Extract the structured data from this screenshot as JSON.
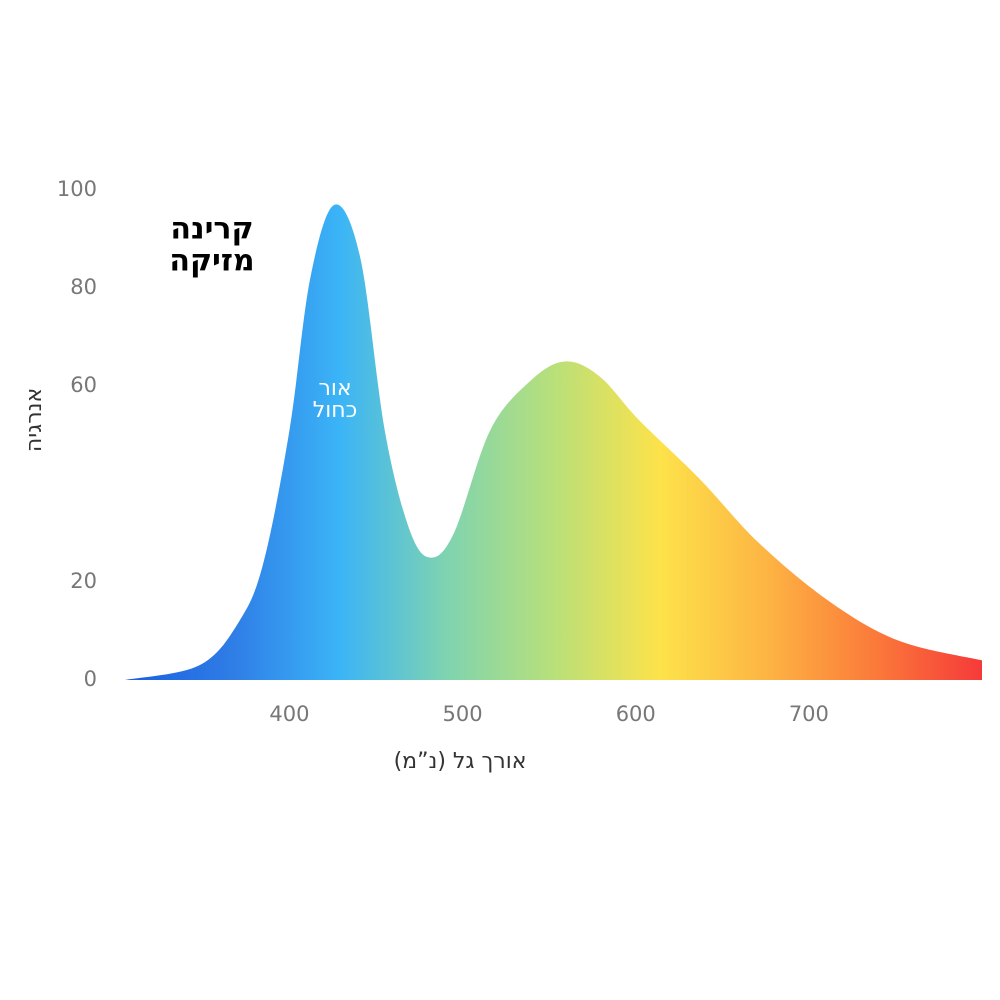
{
  "chart_data": {
    "type": "area",
    "x_label": "אורך גל (נ”מ)",
    "y_label": "אנרגיה",
    "annotations": [
      [
        "קרינה",
        "מזיקה"
      ],
      [
        "אור",
        "כחול"
      ]
    ],
    "x": [
      305,
      348,
      371,
      385,
      400,
      412,
      426,
      441,
      455,
      469,
      481,
      495,
      516,
      539,
      559,
      579,
      602,
      637,
      671,
      712,
      752,
      800
    ],
    "values": [
      0,
      3,
      12,
      24,
      51,
      82,
      97,
      86,
      51,
      31,
      25,
      30,
      51,
      61,
      65,
      62,
      53,
      41,
      28,
      16,
      8,
      4
    ],
    "gradient": [
      "#1a5fe0",
      "#2f7de6",
      "#3bb4f7",
      "#7fd3b0",
      "#b8e07a",
      "#fde24a",
      "#fdb443",
      "#fb7a3a",
      "#f53a3a"
    ],
    "xlim": [
      305,
      800
    ],
    "ylim": [
      0,
      100
    ],
    "xticks": [
      400,
      500,
      600,
      700
    ],
    "yticks": [
      0,
      20,
      60,
      80,
      100
    ],
    "grid": false
  }
}
